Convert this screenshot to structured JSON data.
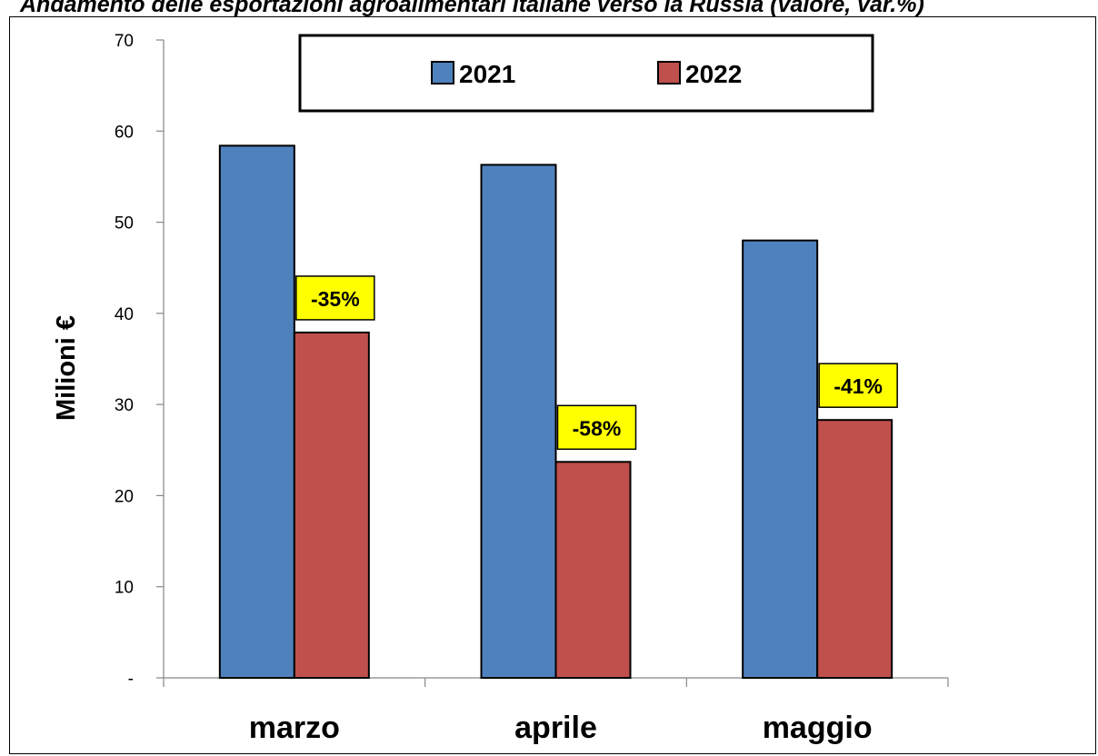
{
  "title": "Andamento delle esportazioni agroalimentari italiane verso la Russia (valore, var.%)",
  "colors": {
    "s2021": "#4f81bd",
    "s2022": "#c0504d",
    "label_bg": "#ffff00"
  },
  "chart_data": {
    "type": "bar",
    "title": "Andamento delle esportazioni agroalimentari italiane verso la Russia (valore, var.%)",
    "xlabel": "",
    "ylabel": "Milioni €",
    "ylim": [
      0,
      70
    ],
    "yticks": [
      0,
      10,
      20,
      30,
      40,
      50,
      60,
      70
    ],
    "ytick_labels": [
      "-",
      "10",
      "20",
      "30",
      "40",
      "50",
      "60",
      "70"
    ],
    "categories": [
      "marzo",
      "aprile",
      "maggio"
    ],
    "series": [
      {
        "name": "2021",
        "values": [
          58.4,
          56.3,
          48.0
        ]
      },
      {
        "name": "2022",
        "values": [
          37.9,
          23.7,
          28.3
        ]
      }
    ],
    "data_labels": [
      "-35%",
      "-58%",
      "-41%"
    ],
    "legend": "top-center",
    "grid": false
  }
}
